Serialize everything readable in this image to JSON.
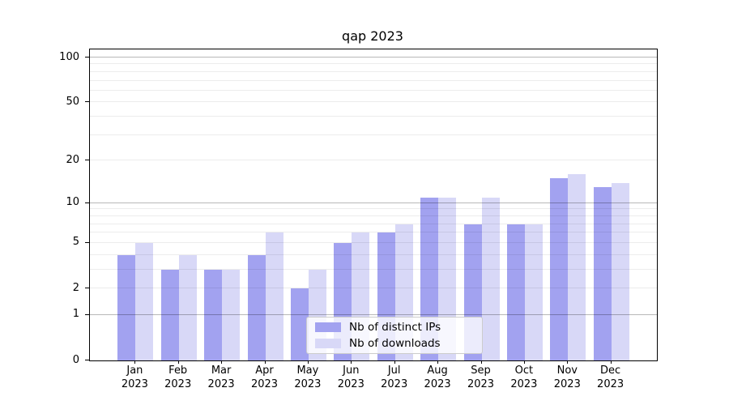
{
  "title": "qap 2023",
  "colors": {
    "ips": "#a2a2f0",
    "downloads": "#d8d8f7",
    "grid_major": "#b5b5b5",
    "grid_minor": "#ebebeb",
    "axis": "#000000"
  },
  "legend": {
    "items": [
      {
        "label": "Nb of distinct IPs",
        "color_key": "ips"
      },
      {
        "label": "Nb of downloads",
        "color_key": "downloads"
      }
    ]
  },
  "chart_data": {
    "type": "bar",
    "title": "qap 2023",
    "categories": [
      "Jan 2023",
      "Feb 2023",
      "Mar 2023",
      "Apr 2023",
      "May 2023",
      "Jun 2023",
      "Jul 2023",
      "Aug 2023",
      "Sep 2023",
      "Oct 2023",
      "Nov 2023",
      "Dec 2023"
    ],
    "series": [
      {
        "name": "Nb of distinct IPs",
        "values": [
          4,
          3,
          3,
          4,
          2,
          5,
          6,
          11,
          7,
          7,
          15,
          13
        ]
      },
      {
        "name": "Nb of downloads",
        "values": [
          5,
          4,
          3,
          6,
          3,
          6,
          7,
          11,
          11,
          7,
          16,
          14
        ]
      }
    ],
    "xlabel": "",
    "ylabel": "",
    "ylim": [
      0,
      101
    ],
    "yscale": "log2(1+x)",
    "yticks": [
      0,
      1,
      2,
      5,
      10,
      20,
      50,
      100
    ],
    "ytick_labels": [
      "0",
      "1",
      "2",
      "5",
      "10",
      "20",
      "50",
      "100"
    ],
    "grid_major": [
      1,
      10,
      100
    ],
    "grid_minor": [
      2,
      3,
      4,
      5,
      6,
      7,
      8,
      9,
      20,
      30,
      40,
      50,
      60,
      70,
      80,
      90
    ],
    "grid": "on",
    "legend_position": "lower center inside axes"
  }
}
